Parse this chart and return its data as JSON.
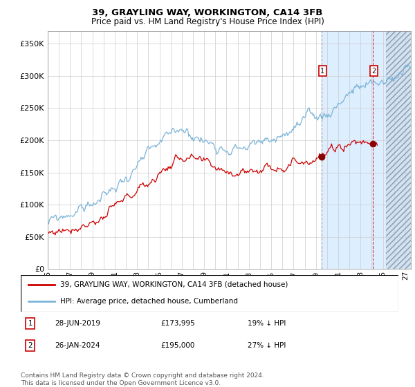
{
  "title": "39, GRAYLING WAY, WORKINGTON, CA14 3FB",
  "subtitle": "Price paid vs. HM Land Registry's House Price Index (HPI)",
  "ylabel_ticks": [
    "£0",
    "£50K",
    "£100K",
    "£150K",
    "£200K",
    "£250K",
    "£300K",
    "£350K"
  ],
  "ytick_values": [
    0,
    50000,
    100000,
    150000,
    200000,
    250000,
    300000,
    350000
  ],
  "ylim": [
    0,
    370000
  ],
  "xlim_start": 1995.0,
  "xlim_end": 2027.5,
  "hpi_color": "#7ab4d8",
  "price_color": "#cc0000",
  "event1_date": 2019.49,
  "event1_price": 173995,
  "event1_label": "28-JUN-2019",
  "event1_hpi_pct": "19%",
  "event2_date": 2024.07,
  "event2_price": 195000,
  "event2_label": "26-JAN-2024",
  "event2_hpi_pct": "27%",
  "vline1_x": 2019.49,
  "vline2_x": 2024.07,
  "shade_start": 2019.49,
  "shade_color": "#ddeeff",
  "hatch_start": 2025.3,
  "legend1": "39, GRAYLING WAY, WORKINGTON, CA14 3FB (detached house)",
  "legend2": "HPI: Average price, detached house, Cumberland",
  "footer": "Contains HM Land Registry data © Crown copyright and database right 2024.\nThis data is licensed under the Open Government Licence v3.0.",
  "grid_color": "#cccccc"
}
